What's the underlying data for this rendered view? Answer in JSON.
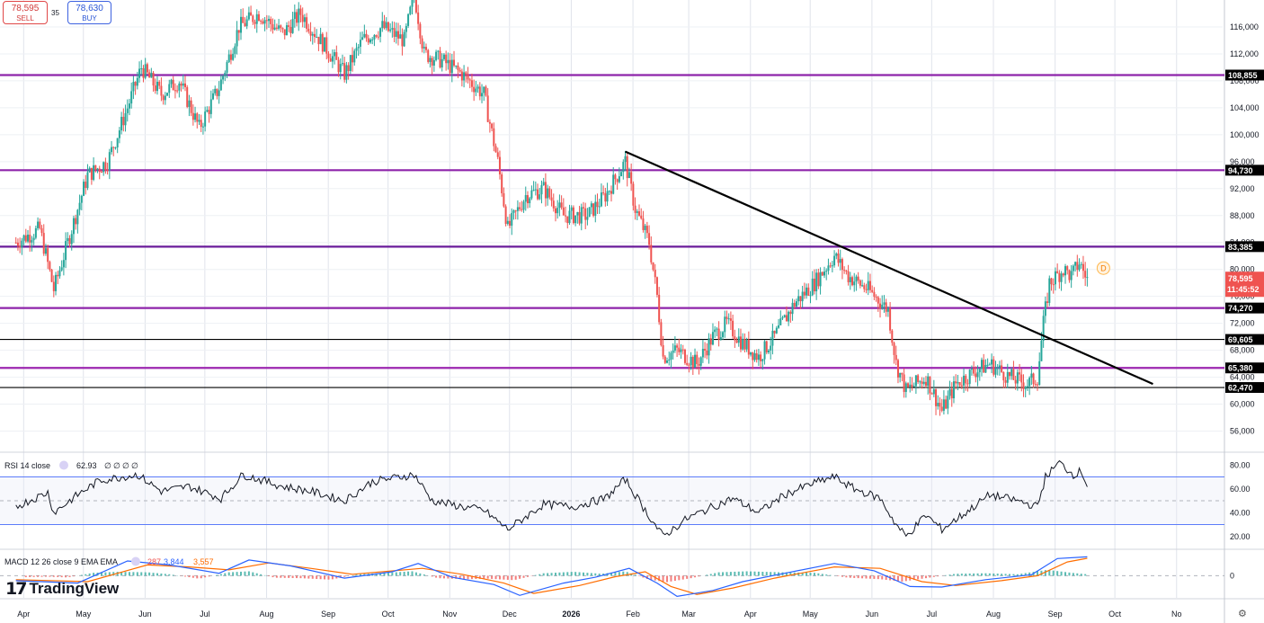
{
  "trade": {
    "sell_price": "78,595",
    "sell_label": "SELL",
    "buy_price": "78,630",
    "buy_label": "BUY",
    "spread": "35"
  },
  "branding": {
    "logo_text": "TradingView",
    "logo_icon": "tradingview-logo-icon"
  },
  "settings_icon": "gear-icon",
  "chart_data": [
    {
      "type": "candlestick",
      "ylim": [
        53000,
        120000
      ],
      "y_ticks": [
        "116,000",
        "112,000",
        "108,000",
        "104,000",
        "100,000",
        "96,000",
        "92,000",
        "88,000",
        "84,000",
        "80,000",
        "76,000",
        "72,000",
        "68,000",
        "64,000",
        "60,000",
        "56,000"
      ],
      "x_ticks": [
        "Apr",
        "May",
        "Jun",
        "Jul",
        "Aug",
        "Sep",
        "Oct",
        "Nov",
        "Dec",
        "2026",
        "Feb",
        "Mar",
        "Apr",
        "May",
        "Jun",
        "Jul",
        "Aug",
        "Sep",
        "Oct",
        "No"
      ],
      "last_price": "78,595",
      "countdown": "11:45:52",
      "marker": "D",
      "level_tags": [
        "108,855",
        "94,730",
        "83,385",
        "74,270",
        "69,605",
        "65,380",
        "62,470"
      ],
      "horizontal_lines": [
        {
          "value": 108855,
          "color": "#8e24aa"
        },
        {
          "value": 94730,
          "color": "#8e24aa"
        },
        {
          "value": 83385,
          "color": "#6a1b9a"
        },
        {
          "value": 74270,
          "color": "#8e24aa"
        },
        {
          "value": 69605,
          "color": "#000000"
        },
        {
          "value": 65380,
          "color": "#9c27b0"
        },
        {
          "value": 62470,
          "color": "#000000"
        }
      ],
      "trendline": {
        "from": [
          "2026-01-20",
          97500
        ],
        "to": [
          "2026-10-12",
          63000
        ],
        "color": "#000000"
      },
      "close_path": [
        [
          "2025-03-20",
          84000
        ],
        [
          "2025-04-01",
          86000
        ],
        [
          "2025-04-08",
          77000
        ],
        [
          "2025-04-15",
          84000
        ],
        [
          "2025-04-25",
          94000
        ],
        [
          "2025-05-05",
          96000
        ],
        [
          "2025-05-15",
          104000
        ],
        [
          "2025-05-22",
          110000
        ],
        [
          "2025-06-01",
          106000
        ],
        [
          "2025-06-10",
          108000
        ],
        [
          "2025-06-20",
          101000
        ],
        [
          "2025-06-30",
          107000
        ],
        [
          "2025-07-10",
          116000
        ],
        [
          "2025-07-20",
          118000
        ],
        [
          "2025-08-01",
          115000
        ],
        [
          "2025-08-10",
          118000
        ],
        [
          "2025-08-20",
          114000
        ],
        [
          "2025-09-01",
          109000
        ],
        [
          "2025-09-10",
          114000
        ],
        [
          "2025-09-20",
          116000
        ],
        [
          "2025-10-01",
          114000
        ],
        [
          "2025-10-06",
          121000
        ],
        [
          "2025-10-11",
          112000
        ],
        [
          "2025-10-20",
          111000
        ],
        [
          "2025-10-30",
          109000
        ],
        [
          "2025-11-10",
          106000
        ],
        [
          "2025-11-17",
          96000
        ],
        [
          "2025-11-22",
          86000
        ],
        [
          "2025-12-01",
          91000
        ],
        [
          "2025-12-10",
          92000
        ],
        [
          "2025-12-20",
          88000
        ],
        [
          "2026-01-01",
          88000
        ],
        [
          "2026-01-10",
          91000
        ],
        [
          "2026-01-20",
          96000
        ],
        [
          "2026-01-25",
          89000
        ],
        [
          "2026-02-01",
          84000
        ],
        [
          "2026-02-05",
          76000
        ],
        [
          "2026-02-08",
          67000
        ],
        [
          "2026-02-15",
          68000
        ],
        [
          "2026-02-25",
          66000
        ],
        [
          "2026-03-05",
          70000
        ],
        [
          "2026-03-12",
          72000
        ],
        [
          "2026-03-20",
          69000
        ],
        [
          "2026-03-28",
          67000
        ],
        [
          "2026-04-05",
          70000
        ],
        [
          "2026-04-15",
          75000
        ],
        [
          "2026-04-25",
          78000
        ],
        [
          "2026-05-05",
          82000
        ],
        [
          "2026-05-12",
          79000
        ],
        [
          "2026-05-22",
          77000
        ],
        [
          "2026-06-01",
          74000
        ],
        [
          "2026-06-05",
          66000
        ],
        [
          "2026-06-10",
          62000
        ],
        [
          "2026-06-20",
          64000
        ],
        [
          "2026-06-28",
          59000
        ],
        [
          "2026-07-05",
          63000
        ],
        [
          "2026-07-15",
          65000
        ],
        [
          "2026-07-22",
          66000
        ],
        [
          "2026-08-01",
          64000
        ],
        [
          "2026-08-10",
          63000
        ],
        [
          "2026-08-15",
          64000
        ],
        [
          "2026-08-18",
          72000
        ],
        [
          "2026-08-21",
          78000
        ],
        [
          "2026-08-28",
          80000
        ],
        [
          "2026-09-01",
          79000
        ],
        [
          "2026-09-05",
          81000
        ],
        [
          "2026-09-09",
          78595
        ]
      ]
    },
    {
      "type": "line",
      "title": "RSI 14 close",
      "value": "62.93",
      "extra_values": [
        "∅",
        "∅",
        "∅",
        "∅"
      ],
      "ylim": [
        10,
        90
      ],
      "y_ticks": [
        "80.00",
        "60.00",
        "40.00",
        "20.00"
      ],
      "bands": [
        70,
        30
      ],
      "midline": 50,
      "path": [
        [
          "2025-03-20",
          45
        ],
        [
          "2025-04-05",
          57
        ],
        [
          "2025-04-08",
          40
        ],
        [
          "2025-04-20",
          55
        ],
        [
          "2025-05-01",
          67
        ],
        [
          "2025-05-20",
          72
        ],
        [
          "2025-06-01",
          58
        ],
        [
          "2025-06-15",
          62
        ],
        [
          "2025-07-01",
          52
        ],
        [
          "2025-07-12",
          72
        ],
        [
          "2025-08-01",
          62
        ],
        [
          "2025-08-15",
          58
        ],
        [
          "2025-09-01",
          50
        ],
        [
          "2025-09-15",
          66
        ],
        [
          "2025-10-06",
          72
        ],
        [
          "2025-10-15",
          50
        ],
        [
          "2025-10-30",
          45
        ],
        [
          "2025-11-10",
          42
        ],
        [
          "2025-11-22",
          26
        ],
        [
          "2025-12-10",
          47
        ],
        [
          "2025-12-25",
          45
        ],
        [
          "2026-01-10",
          52
        ],
        [
          "2026-01-20",
          68
        ],
        [
          "2026-01-30",
          42
        ],
        [
          "2026-02-08",
          20
        ],
        [
          "2026-02-20",
          35
        ],
        [
          "2026-03-05",
          45
        ],
        [
          "2026-03-15",
          52
        ],
        [
          "2026-03-28",
          40
        ],
        [
          "2026-04-10",
          55
        ],
        [
          "2026-04-25",
          65
        ],
        [
          "2026-05-05",
          70
        ],
        [
          "2026-05-15",
          60
        ],
        [
          "2026-05-28",
          52
        ],
        [
          "2026-06-05",
          30
        ],
        [
          "2026-06-10",
          20
        ],
        [
          "2026-06-20",
          38
        ],
        [
          "2026-06-28",
          26
        ],
        [
          "2026-07-10",
          40
        ],
        [
          "2026-07-22",
          55
        ],
        [
          "2026-08-05",
          50
        ],
        [
          "2026-08-15",
          45
        ],
        [
          "2026-08-19",
          70
        ],
        [
          "2026-08-26",
          82
        ],
        [
          "2026-09-02",
          72
        ],
        [
          "2026-09-06",
          75
        ],
        [
          "2026-09-09",
          63
        ]
      ]
    },
    {
      "type": "bar",
      "title": "MACD 12 26 close 9 EMA EMA",
      "values_shown": [
        "287",
        "3,844",
        "3,557"
      ],
      "y_ticks": [
        "0"
      ],
      "ylim": [
        -4500,
        5200
      ],
      "series_colors": {
        "macd": "#2962ff",
        "signal": "#ff6d00",
        "hist_pos": "#26a69a",
        "hist_neg": "#ef5350"
      },
      "macd_path": [
        [
          "2025-03-20",
          -1000
        ],
        [
          "2025-04-20",
          -1500
        ],
        [
          "2025-05-15",
          3000
        ],
        [
          "2025-06-05",
          2200
        ],
        [
          "2025-06-30",
          500
        ],
        [
          "2025-07-15",
          3200
        ],
        [
          "2025-08-05",
          2000
        ],
        [
          "2025-09-01",
          -500
        ],
        [
          "2025-09-25",
          800
        ],
        [
          "2025-10-08",
          2500
        ],
        [
          "2025-10-25",
          -300
        ],
        [
          "2025-11-15",
          -1800
        ],
        [
          "2025-11-28",
          -4000
        ],
        [
          "2025-12-20",
          -1500
        ],
        [
          "2026-01-05",
          -300
        ],
        [
          "2026-01-22",
          1500
        ],
        [
          "2026-02-05",
          -1500
        ],
        [
          "2026-02-15",
          -4200
        ],
        [
          "2026-03-05",
          -3000
        ],
        [
          "2026-03-20",
          -1200
        ],
        [
          "2026-04-10",
          500
        ],
        [
          "2026-05-05",
          2500
        ],
        [
          "2026-05-25",
          1000
        ],
        [
          "2026-06-12",
          -2200
        ],
        [
          "2026-06-28",
          -2300
        ],
        [
          "2026-07-20",
          -800
        ],
        [
          "2026-08-12",
          200
        ],
        [
          "2026-08-25",
          3500
        ],
        [
          "2026-09-09",
          3844
        ]
      ],
      "signal_path": [
        [
          "2025-03-20",
          -800
        ],
        [
          "2025-04-25",
          -1200
        ],
        [
          "2025-05-25",
          2200
        ],
        [
          "2025-06-15",
          1800
        ],
        [
          "2025-07-05",
          1200
        ],
        [
          "2025-07-25",
          2600
        ],
        [
          "2025-08-15",
          1500
        ],
        [
          "2025-09-05",
          300
        ],
        [
          "2025-10-10",
          1500
        ],
        [
          "2025-10-30",
          300
        ],
        [
          "2025-11-20",
          -1500
        ],
        [
          "2025-12-05",
          -3600
        ],
        [
          "2025-12-28",
          -2000
        ],
        [
          "2026-01-15",
          -200
        ],
        [
          "2026-01-30",
          800
        ],
        [
          "2026-02-12",
          -2200
        ],
        [
          "2026-02-25",
          -3800
        ],
        [
          "2026-03-15",
          -2500
        ],
        [
          "2026-04-05",
          -500
        ],
        [
          "2026-05-05",
          1800
        ],
        [
          "2026-05-28",
          1500
        ],
        [
          "2026-06-18",
          -1200
        ],
        [
          "2026-07-05",
          -2000
        ],
        [
          "2026-07-28",
          -1000
        ],
        [
          "2026-08-15",
          0
        ],
        [
          "2026-08-30",
          2800
        ],
        [
          "2026-09-09",
          3557
        ]
      ],
      "histogram": [
        [
          "2025-03-25",
          -300
        ],
        [
          "2025-04-05",
          -200
        ],
        [
          "2025-04-15",
          -350
        ],
        [
          "2025-04-28",
          600
        ],
        [
          "2025-05-10",
          800
        ],
        [
          "2025-05-25",
          700
        ],
        [
          "2025-06-05",
          300
        ],
        [
          "2025-06-20",
          -600
        ],
        [
          "2025-07-05",
          700
        ],
        [
          "2025-07-15",
          900
        ],
        [
          "2025-07-28",
          -400
        ],
        [
          "2025-08-10",
          -500
        ],
        [
          "2025-08-25",
          -800
        ],
        [
          "2025-09-08",
          300
        ],
        [
          "2025-09-22",
          600
        ],
        [
          "2025-10-05",
          900
        ],
        [
          "2025-10-18",
          -500
        ],
        [
          "2025-11-01",
          -700
        ],
        [
          "2025-11-12",
          -600
        ],
        [
          "2025-11-25",
          -900
        ],
        [
          "2025-12-10",
          500
        ],
        [
          "2025-12-25",
          800
        ],
        [
          "2026-01-08",
          400
        ],
        [
          "2026-01-20",
          900
        ],
        [
          "2026-02-01",
          -800
        ],
        [
          "2026-02-10",
          -1300
        ],
        [
          "2026-02-22",
          -500
        ],
        [
          "2026-03-08",
          700
        ],
        [
          "2026-03-22",
          900
        ],
        [
          "2026-04-08",
          700
        ],
        [
          "2026-04-25",
          600
        ],
        [
          "2026-05-12",
          -400
        ],
        [
          "2026-05-28",
          -700
        ],
        [
          "2026-06-08",
          -1200
        ],
        [
          "2026-06-20",
          -500
        ],
        [
          "2026-07-05",
          400
        ],
        [
          "2026-07-20",
          500
        ],
        [
          "2026-08-05",
          300
        ],
        [
          "2026-08-20",
          1200
        ],
        [
          "2026-09-01",
          600
        ],
        [
          "2026-09-09",
          287
        ]
      ]
    }
  ]
}
